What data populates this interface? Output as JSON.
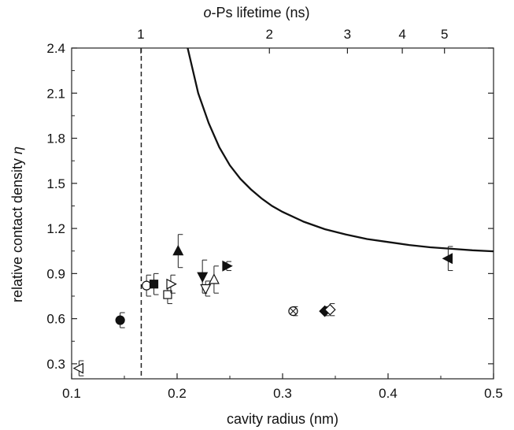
{
  "chart_data": {
    "type": "scatter",
    "xlabel": "cavity radius (nm)",
    "ylabel": "relative contact density",
    "ylabel_symbol": "η",
    "top_label_prefix": "o",
    "top_label_rest": "-Ps lifetime (ns)",
    "xlim": [
      0.1,
      0.5
    ],
    "ylim": [
      0.2,
      2.4
    ],
    "x_ticks": [
      {
        "value": 0.1,
        "label": "0.1"
      },
      {
        "value": 0.2,
        "label": "0.2"
      },
      {
        "value": 0.3,
        "label": "0.3"
      },
      {
        "value": 0.4,
        "label": "0.4"
      },
      {
        "value": 0.5,
        "label": "0.5"
      }
    ],
    "y_ticks": [
      {
        "value": 0.3,
        "label": "0.3"
      },
      {
        "value": 0.6,
        "label": "0.6"
      },
      {
        "value": 0.9,
        "label": "0.9"
      },
      {
        "value": 1.2,
        "label": "1.2"
      },
      {
        "value": 1.5,
        "label": "1.5"
      },
      {
        "value": 1.8,
        "label": "1.8"
      },
      {
        "value": 2.1,
        "label": "2.1"
      },
      {
        "value": 2.4,
        "label": "2.4"
      }
    ],
    "top_ticks": [
      {
        "radius": 0.1656,
        "label": "1"
      },
      {
        "radius": 0.2875,
        "label": "2"
      },
      {
        "radius": 0.3615,
        "label": "3"
      },
      {
        "radius": 0.4135,
        "label": "4"
      },
      {
        "radius": 0.4535,
        "label": "5"
      }
    ],
    "vline_x": 0.166,
    "curve": {
      "x": [
        0.21,
        0.22,
        0.23,
        0.24,
        0.25,
        0.26,
        0.27,
        0.28,
        0.29,
        0.3,
        0.32,
        0.34,
        0.36,
        0.38,
        0.4,
        0.42,
        0.44,
        0.46,
        0.48,
        0.5
      ],
      "y": [
        2.4,
        2.1,
        1.9,
        1.74,
        1.62,
        1.53,
        1.46,
        1.4,
        1.35,
        1.31,
        1.245,
        1.195,
        1.16,
        1.13,
        1.11,
        1.09,
        1.075,
        1.065,
        1.055,
        1.048
      ]
    },
    "points": [
      {
        "x": 0.107,
        "y": 0.27,
        "err": 0.05,
        "marker": "triangle-left",
        "filled": false
      },
      {
        "x": 0.146,
        "y": 0.59,
        "err": 0.05,
        "marker": "circle",
        "filled": true
      },
      {
        "x": 0.171,
        "y": 0.82,
        "err": 0.07,
        "marker": "circle",
        "filled": false
      },
      {
        "x": 0.178,
        "y": 0.83,
        "err": 0.07,
        "marker": "square",
        "filled": true
      },
      {
        "x": 0.191,
        "y": 0.76,
        "err": 0.06,
        "marker": "square",
        "filled": false
      },
      {
        "x": 0.194,
        "y": 0.83,
        "err": 0.06,
        "marker": "triangle-right",
        "filled": false
      },
      {
        "x": 0.201,
        "y": 1.05,
        "err": 0.11,
        "marker": "triangle-up",
        "filled": true
      },
      {
        "x": 0.224,
        "y": 0.88,
        "err": 0.11,
        "marker": "triangle-down",
        "filled": true
      },
      {
        "x": 0.227,
        "y": 0.8,
        "err": 0.05,
        "marker": "triangle-down",
        "filled": false
      },
      {
        "x": 0.235,
        "y": 0.86,
        "err": 0.09,
        "marker": "triangle-up",
        "filled": false
      },
      {
        "x": 0.247,
        "y": 0.95,
        "err": 0.03,
        "marker": "triangle-right",
        "filled": true
      },
      {
        "x": 0.31,
        "y": 0.65,
        "err": 0.03,
        "marker": "circle-x",
        "filled": false
      },
      {
        "x": 0.34,
        "y": 0.65,
        "err": 0.03,
        "marker": "diamond",
        "filled": true
      },
      {
        "x": 0.345,
        "y": 0.66,
        "err": 0.04,
        "marker": "diamond",
        "filled": false
      },
      {
        "x": 0.457,
        "y": 1.0,
        "err": 0.08,
        "marker": "triangle-left",
        "filled": true
      }
    ]
  }
}
